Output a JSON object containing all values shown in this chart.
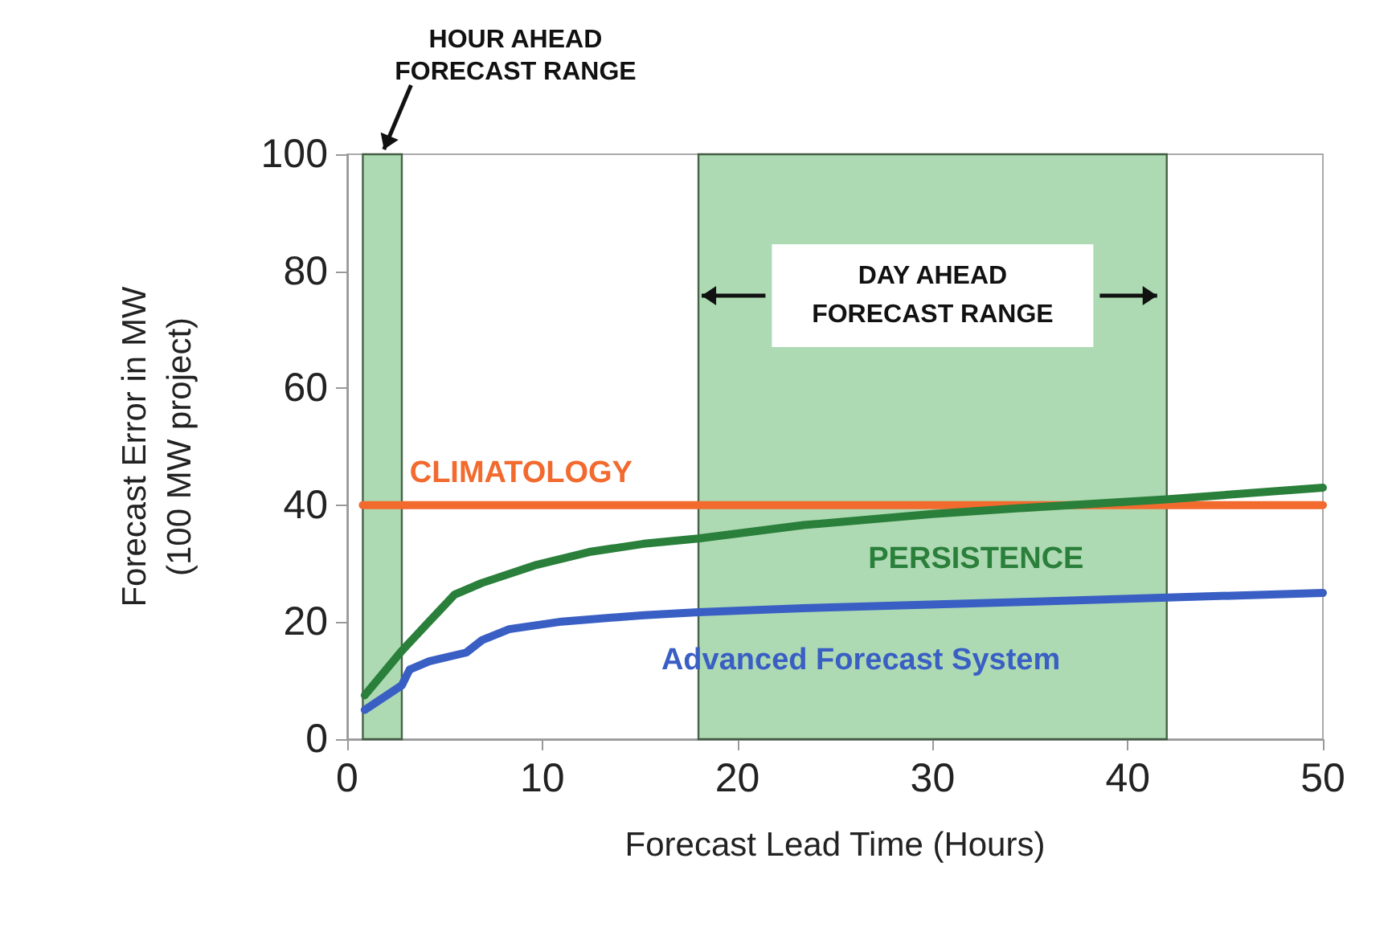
{
  "chart_data": {
    "type": "line",
    "xlabel": "Forecast Lead Time (Hours)",
    "ylabel": "Forecast Error in MW\n(100 MW project)",
    "xlim": [
      0,
      50
    ],
    "xticks": [
      0,
      10,
      20,
      30,
      40,
      50
    ],
    "ylim": [
      0,
      100
    ],
    "yticks": [
      0,
      20,
      40,
      60,
      80,
      100
    ],
    "grid": false,
    "legend": false,
    "marker": "none",
    "line_style": "solid",
    "series": [
      {
        "name": "CLIMATOLOGY",
        "color": "#f26a2e",
        "x": [
          0.8,
          50
        ],
        "values": [
          40,
          40
        ]
      },
      {
        "name": "PERSISTENCE",
        "color": "#2a7f3a",
        "x": [
          0.9,
          2.8,
          4.2,
          5.5,
          6.9,
          9.7,
          12.4,
          15.2,
          18,
          23.4,
          30,
          35,
          42,
          50
        ],
        "values": [
          7.5,
          15.1,
          20.1,
          24.7,
          26.7,
          29.8,
          32,
          33.4,
          34.3,
          36.6,
          38.5,
          39.6,
          41,
          43
        ]
      },
      {
        "name": "Advanced Forecast System",
        "color": "#3a5fc4",
        "x": [
          0.9,
          2.8,
          3.2,
          4.2,
          6.1,
          6.9,
          8.3,
          11,
          15.2,
          18,
          23.4,
          35,
          50
        ],
        "values": [
          5,
          9.2,
          11.9,
          13.3,
          14.8,
          16.9,
          18.8,
          20.1,
          21.2,
          21.7,
          22.4,
          23.5,
          25
        ]
      }
    ],
    "bands": [
      {
        "axis": "x",
        "from": 0.8,
        "to": 2.8,
        "label": "HOUR AHEAD\nFORECAST RANGE",
        "color": "#9fd4a6"
      },
      {
        "axis": "x",
        "from": 18,
        "to": 42,
        "label": "DAY AHEAD\nFORECAST RANGE",
        "color": "#9fd4a6"
      }
    ]
  }
}
